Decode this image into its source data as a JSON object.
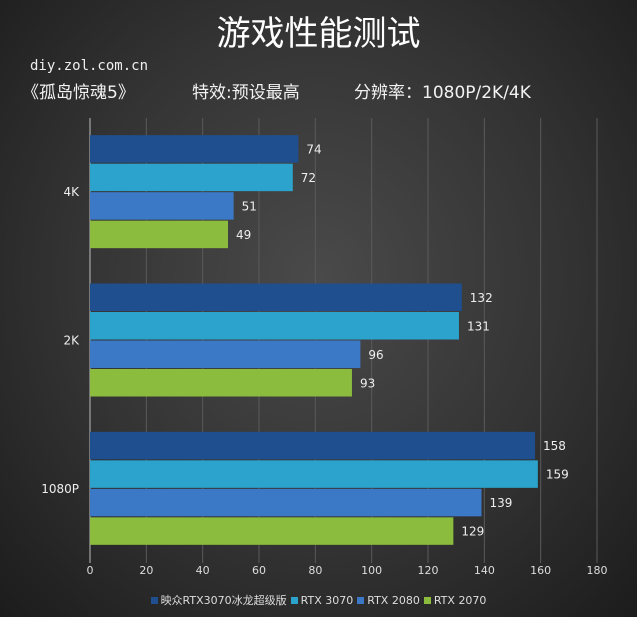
{
  "header": {
    "title": "游戏性能测试",
    "site": "diy.zol.com.cn",
    "game": "《孤岛惊魂5》",
    "settings": "特效:预设最高",
    "resolution": "分辨率：1080P/2K/4K"
  },
  "chart_data": {
    "type": "bar",
    "orientation": "horizontal",
    "categories": [
      "4K",
      "2K",
      "1080P"
    ],
    "series": [
      {
        "name": "映众RTX3070冰龙超级版",
        "color": "#1f4f8e",
        "values": [
          74,
          132,
          158
        ]
      },
      {
        "name": "RTX 3070",
        "color": "#2ba3cc",
        "values": [
          72,
          131,
          159
        ]
      },
      {
        "name": "RTX 2080",
        "color": "#3b78c6",
        "values": [
          51,
          96,
          139
        ]
      },
      {
        "name": "RTX 2070",
        "color": "#8cbc3e",
        "values": [
          49,
          93,
          129
        ]
      }
    ],
    "xlim": [
      0,
      180
    ],
    "xticks": [
      "0",
      "20",
      "40",
      "60",
      "80",
      "100",
      "120",
      "140",
      "160",
      "180"
    ],
    "grid": true,
    "legend": "bottom",
    "data_labels": true
  }
}
